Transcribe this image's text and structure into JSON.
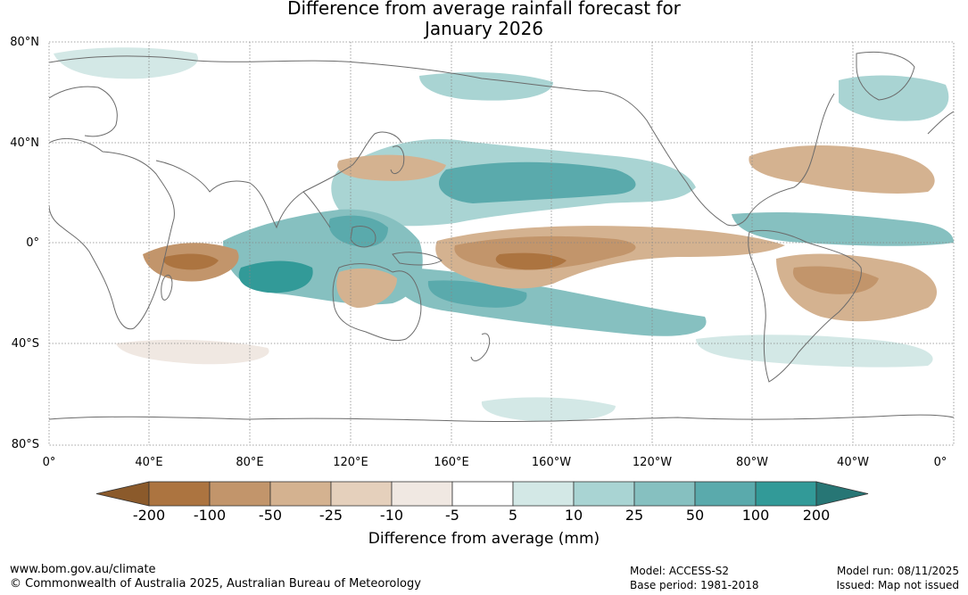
{
  "title": {
    "line1": "Difference from average rainfall forecast for",
    "line2": "January 2026"
  },
  "map": {
    "lat_labels": [
      "80°N",
      "40°N",
      "0°",
      "40°S",
      "80°S"
    ],
    "lon_labels": [
      "0°",
      "40°E",
      "80°E",
      "120°E",
      "160°E",
      "160°W",
      "120°W",
      "80°W",
      "40°W",
      "0°"
    ]
  },
  "legend": {
    "title": "Difference from average (mm)",
    "ticks": [
      "-200",
      "-100",
      "-50",
      "-25",
      "-10",
      "-5",
      "5",
      "10",
      "25",
      "50",
      "100",
      "200"
    ],
    "colors": [
      "#8b5a2b",
      "#ac7440",
      "#c2956b",
      "#d4b290",
      "#e5d0bc",
      "#f0e8e2",
      "#ffffff",
      "#d3e8e6",
      "#a9d4d3",
      "#86c0c0",
      "#5aaaac",
      "#329a98",
      "#277675"
    ]
  },
  "footer": {
    "website": "www.bom.gov.au/climate",
    "copyright": "© Commonwealth of Australia 2025, Australian Bureau of Meteorology",
    "model": "Model: ACCESS-S2",
    "base_period": "Base period: 1981-2018",
    "model_run": "Model run: 08/11/2025",
    "issued": "Issued: Map not issued"
  }
}
